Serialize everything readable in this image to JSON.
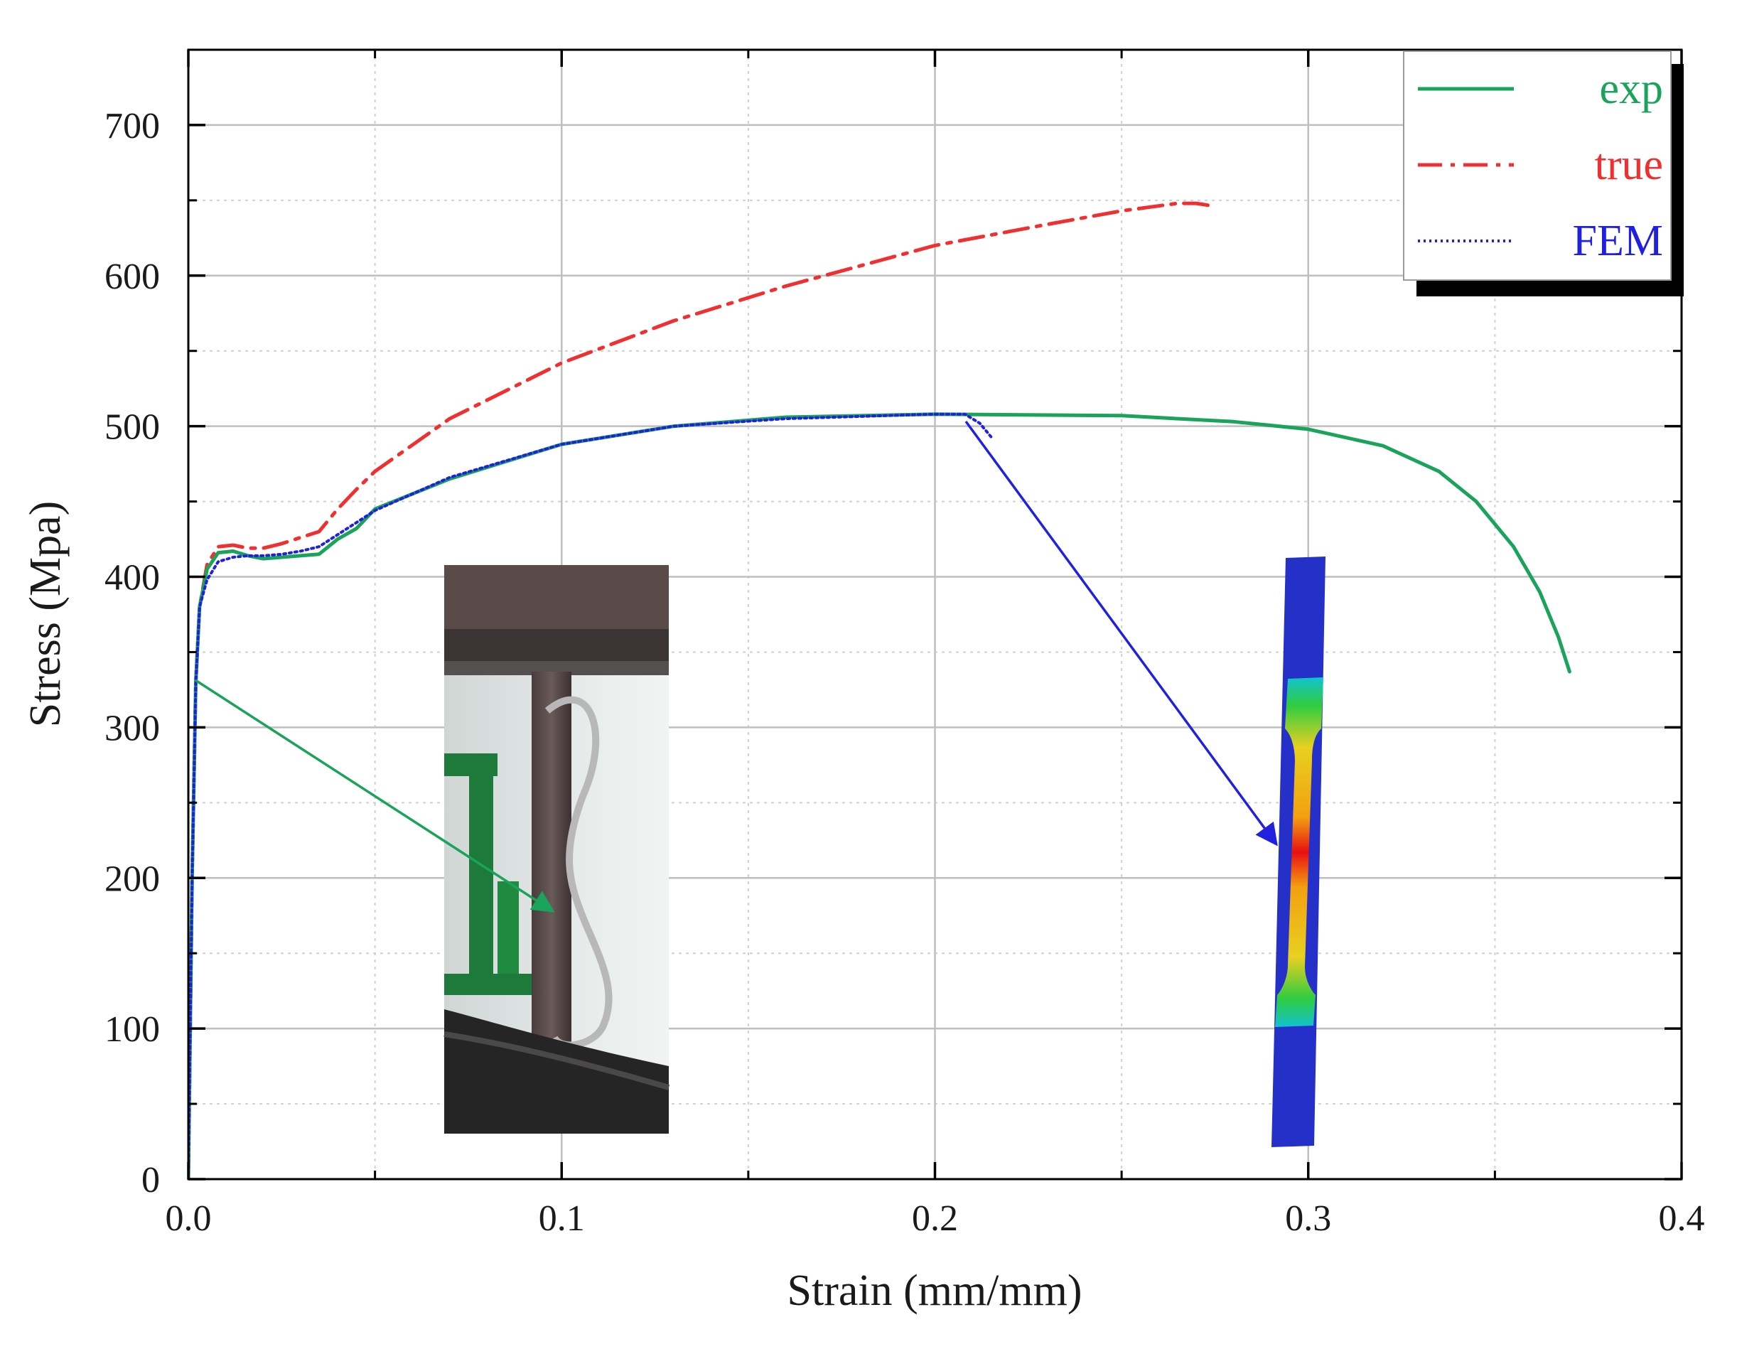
{
  "chart_data": {
    "type": "line",
    "title": "",
    "xlabel": "Strain (mm/mm)",
    "ylabel": "Stress (Mpa)",
    "xlim": [
      0,
      0.4
    ],
    "ylim": [
      0,
      750
    ],
    "x_ticks": [
      "0.0",
      "0.1",
      "0.2",
      "0.3",
      "0.4"
    ],
    "y_ticks": [
      "0",
      "100",
      "200",
      "300",
      "400",
      "500",
      "600",
      "700"
    ],
    "grid": true,
    "legend_position": "top-right",
    "series": [
      {
        "name": "exp",
        "color": "#1aa35a",
        "style": "solid",
        "points": [
          [
            0,
            0
          ],
          [
            0.001,
            200
          ],
          [
            0.002,
            330
          ],
          [
            0.003,
            380
          ],
          [
            0.005,
            405
          ],
          [
            0.008,
            416
          ],
          [
            0.012,
            417
          ],
          [
            0.016,
            414
          ],
          [
            0.02,
            412
          ],
          [
            0.025,
            413
          ],
          [
            0.03,
            414
          ],
          [
            0.035,
            415
          ],
          [
            0.04,
            425
          ],
          [
            0.045,
            432
          ],
          [
            0.05,
            445
          ],
          [
            0.07,
            465
          ],
          [
            0.1,
            488
          ],
          [
            0.13,
            500
          ],
          [
            0.16,
            506
          ],
          [
            0.2,
            508
          ],
          [
            0.25,
            507
          ],
          [
            0.28,
            503
          ],
          [
            0.3,
            498
          ],
          [
            0.32,
            487
          ],
          [
            0.335,
            470
          ],
          [
            0.345,
            450
          ],
          [
            0.355,
            420
          ],
          [
            0.362,
            390
          ],
          [
            0.367,
            360
          ],
          [
            0.37,
            337
          ]
        ]
      },
      {
        "name": "true",
        "color": "#f03030",
        "style": "dashdot",
        "points": [
          [
            0,
            0
          ],
          [
            0.001,
            200
          ],
          [
            0.002,
            330
          ],
          [
            0.003,
            380
          ],
          [
            0.005,
            408
          ],
          [
            0.008,
            420
          ],
          [
            0.012,
            421
          ],
          [
            0.016,
            419
          ],
          [
            0.02,
            419
          ],
          [
            0.025,
            422
          ],
          [
            0.03,
            426
          ],
          [
            0.035,
            430
          ],
          [
            0.04,
            445
          ],
          [
            0.045,
            458
          ],
          [
            0.05,
            470
          ],
          [
            0.07,
            505
          ],
          [
            0.1,
            542
          ],
          [
            0.13,
            570
          ],
          [
            0.16,
            593
          ],
          [
            0.2,
            620
          ],
          [
            0.23,
            634
          ],
          [
            0.25,
            643
          ],
          [
            0.265,
            648
          ],
          [
            0.27,
            648
          ],
          [
            0.275,
            646
          ]
        ]
      },
      {
        "name": "FEM",
        "color": "#2020e0",
        "style": "dotted",
        "points": [
          [
            0,
            0
          ],
          [
            0.001,
            200
          ],
          [
            0.002,
            330
          ],
          [
            0.003,
            380
          ],
          [
            0.005,
            398
          ],
          [
            0.008,
            410
          ],
          [
            0.012,
            413
          ],
          [
            0.016,
            414
          ],
          [
            0.02,
            414
          ],
          [
            0.025,
            415
          ],
          [
            0.03,
            417
          ],
          [
            0.035,
            420
          ],
          [
            0.04,
            428
          ],
          [
            0.045,
            436
          ],
          [
            0.05,
            444
          ],
          [
            0.07,
            466
          ],
          [
            0.1,
            488
          ],
          [
            0.13,
            500
          ],
          [
            0.16,
            505
          ],
          [
            0.2,
            508
          ],
          [
            0.208,
            508
          ],
          [
            0.212,
            502
          ],
          [
            0.215,
            493
          ]
        ]
      }
    ]
  },
  "icons": {
    "specimen_photo": "tensile-test-photo",
    "fem_model": "fem-specimen-contour"
  }
}
